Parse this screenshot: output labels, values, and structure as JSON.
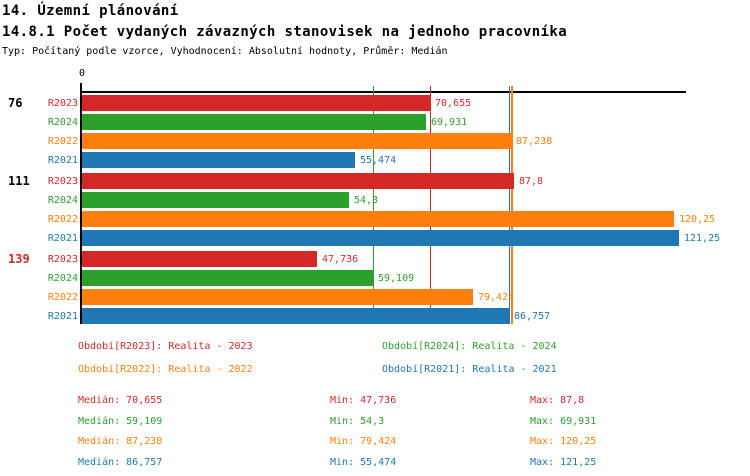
{
  "header": {
    "title": "14. Územní plánování",
    "subtitle": "14.8.1 Počet vydaných závazných stanovisek na jednoho pracovníka",
    "meta": "Typ: Počítaný podle vzorce, Vyhodnocení: Absolutní hodnoty, Průměr: Medián"
  },
  "colors": {
    "R2023": "#d62728",
    "R2024": "#2ca02c",
    "R2022": "#ff7f0e",
    "R2021": "#1f77b4",
    "axis": "#000000",
    "group_label_default": "#000000",
    "group_label_alert": "#d62728"
  },
  "chart_data": {
    "type": "bar",
    "orientation": "horizontal",
    "title": "14.8.1 Počet vydaných závazných stanovisek na jednoho pracovníka",
    "x_axis": {
      "zero_label": "0",
      "min": 0,
      "max": 123,
      "grid": false
    },
    "series_order": [
      "R2023",
      "R2024",
      "R2022",
      "R2021"
    ],
    "groups": [
      {
        "label": "76",
        "label_color": "#000000",
        "bars": [
          {
            "series": "R2023",
            "value": 70.655,
            "display": "70,655"
          },
          {
            "series": "R2024",
            "value": 69.931,
            "display": "69,931"
          },
          {
            "series": "R2022",
            "value": 87.238,
            "display": "87,238"
          },
          {
            "series": "R2021",
            "value": 55.474,
            "display": "55,474"
          }
        ]
      },
      {
        "label": "111",
        "label_color": "#000000",
        "bars": [
          {
            "series": "R2023",
            "value": 87.8,
            "display": "87,8"
          },
          {
            "series": "R2024",
            "value": 54.3,
            "display": "54,3"
          },
          {
            "series": "R2022",
            "value": 120.25,
            "display": "120,25"
          },
          {
            "series": "R2021",
            "value": 121.25,
            "display": "121,25"
          }
        ]
      },
      {
        "label": "139",
        "label_color": "#d62728",
        "bars": [
          {
            "series": "R2023",
            "value": 47.736,
            "display": "47,736"
          },
          {
            "series": "R2024",
            "value": 59.109,
            "display": "59,109"
          },
          {
            "series": "R2022",
            "value": 79.424,
            "display": "79,424"
          },
          {
            "series": "R2021",
            "value": 86.757,
            "display": "86,757"
          }
        ]
      }
    ],
    "median_lines": [
      {
        "series": "R2024",
        "value": 59.109
      },
      {
        "series": "R2023",
        "value": 70.655
      },
      {
        "series": "R2021",
        "value": 86.757
      },
      {
        "series": "R2022",
        "value": 87.238
      }
    ]
  },
  "legend": {
    "rows": [
      [
        {
          "series": "R2023",
          "label": "Období[R2023]: Realita - 2023"
        },
        {
          "series": "R2024",
          "label": "Období[R2024]: Realita - 2024"
        }
      ],
      [
        {
          "series": "R2022",
          "label": "Období[R2022]: Realita - 2022"
        },
        {
          "series": "R2021",
          "label": "Období[R2021]: Realita - 2021"
        }
      ]
    ]
  },
  "stats": {
    "rows": [
      {
        "series": "R2023",
        "median": "Medián: 70,655",
        "min": "Min: 47,736",
        "max": "Max: 87,8"
      },
      {
        "series": "R2024",
        "median": "Medián: 59,109",
        "min": "Min: 54,3",
        "max": "Max: 69,931"
      },
      {
        "series": "R2022",
        "median": "Medián: 87,238",
        "min": "Min: 79,424",
        "max": "Max: 120,25"
      },
      {
        "series": "R2021",
        "median": "Medián: 86,757",
        "min": "Min: 55,474",
        "max": "Max: 121,25"
      }
    ]
  }
}
